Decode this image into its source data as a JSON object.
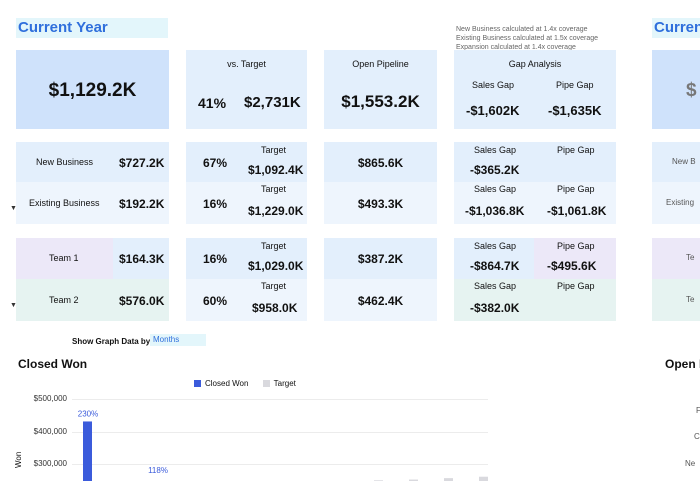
{
  "header": {
    "title": "Current Year",
    "title_right": "Curren",
    "notes": [
      "New Business calculated at 1.4x coverage",
      "Existing Business calculated at 1.5x coverage",
      "Expansion calculated at 1.4x coverage"
    ]
  },
  "summary": {
    "total": "$1,129.2K",
    "vs_target_label": "vs. Target",
    "vs_target_pct": "41%",
    "vs_target_value": "$2,731K",
    "open_pipeline_label": "Open Pipeline",
    "open_pipeline_value": "$1,553.2K",
    "gap_analysis_label": "Gap Analysis",
    "sales_gap_label": "Sales Gap",
    "pipe_gap_label": "Pipe Gap",
    "sales_gap_value": "-$1,602K",
    "pipe_gap_value": "-$1,635K",
    "right_partial": "$"
  },
  "segments": [
    {
      "name": "New Business",
      "value": "$727.2K",
      "pct": "67%",
      "target_label": "Target",
      "target": "$1,092.4K",
      "pipeline": "$865.6K",
      "sales_gap_label": "Sales Gap",
      "sales_gap": "-$365.2K",
      "pipe_gap_label": "Pipe Gap",
      "pipe_gap": ""
    },
    {
      "name": "Existing Business",
      "value": "$192.2K",
      "pct": "16%",
      "target_label": "Target",
      "target": "$1,229.0K",
      "pipeline": "$493.3K",
      "sales_gap_label": "Sales Gap",
      "sales_gap": "-$1,036.8K",
      "pipe_gap_label": "Pipe Gap",
      "pipe_gap": "-$1,061.8K"
    }
  ],
  "teams": [
    {
      "name": "Team 1",
      "value": "$164.3K",
      "pct": "16%",
      "target_label": "Target",
      "target": "$1,029.0K",
      "pipeline": "$387.2K",
      "sales_gap_label": "Sales Gap",
      "sales_gap": "-$864.7K",
      "pipe_gap_label": "Pipe Gap",
      "pipe_gap": "-$495.6K"
    },
    {
      "name": "Team 2",
      "value": "$576.0K",
      "pct": "60%",
      "target_label": "Target",
      "target": "$958.0K",
      "pipeline": "$462.4K",
      "sales_gap_label": "Sales Gap",
      "sales_gap": "-$382.0K",
      "pipe_gap_label": "Pipe Gap",
      "pipe_gap": ""
    }
  ],
  "right_edge": {
    "seg1": "New B",
    "seg2": "Existing",
    "team1": "Te",
    "team2": "Te"
  },
  "graph_controls": {
    "label": "Show Graph Data by:",
    "value": "Months"
  },
  "closed_won": {
    "title": "Closed Won",
    "open_title": "Open P",
    "y_label": "Won",
    "legend": [
      {
        "name": "Closed Won",
        "color": "#3b5bdb"
      },
      {
        "name": "Target",
        "color": "#d9d9de"
      }
    ],
    "y_ticks": [
      "$500,000",
      "$400,000",
      "$300,000"
    ],
    "right_ticks": [
      "F",
      "C",
      "Ne"
    ]
  },
  "chart_data": {
    "type": "bar",
    "title": "Closed Won",
    "ylabel": "Won",
    "ylim": [
      270000,
      500000
    ],
    "series": [
      {
        "name": "Closed Won",
        "values": [
          437000,
          null,
          null,
          null,
          null,
          null,
          null,
          null,
          null,
          null,
          null,
          null
        ]
      },
      {
        "name": "Target",
        "values": [
          null,
          null,
          null,
          null,
          null,
          null,
          null,
          null,
          272000,
          274000,
          278000,
          282000
        ]
      }
    ],
    "data_labels": [
      {
        "text": "230%",
        "index": 0
      },
      {
        "text": "118%",
        "index": 2
      }
    ]
  }
}
